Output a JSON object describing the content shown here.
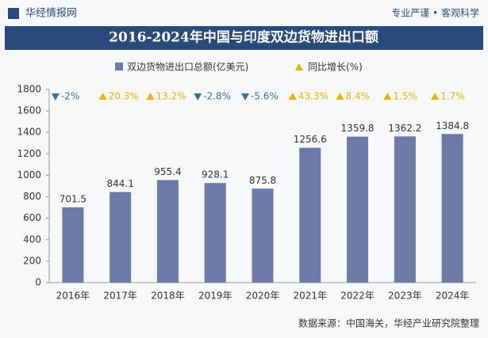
{
  "header": {
    "brand": "华经情报网",
    "slogan": "专业严谨 • 客观科学"
  },
  "chart_data": {
    "type": "bar",
    "title": "2016-2024年中国与印度双边货物进出口额",
    "categories": [
      "2016年",
      "2017年",
      "2018年",
      "2019年",
      "2020年",
      "2021年",
      "2022年",
      "2023年",
      "2024年"
    ],
    "series": [
      {
        "name": "双边货物进出口总额(亿美元)",
        "color": "#6b7aa6",
        "values": [
          701.5,
          844.1,
          955.4,
          928.1,
          875.8,
          1256.6,
          1359.8,
          1362.2,
          1384.8
        ]
      },
      {
        "name": "同比增长(%)",
        "color": "#e8b400",
        "color_down": "#3d7096",
        "values": [
          -2,
          20.3,
          13.2,
          -2.8,
          -5.6,
          43.3,
          8.4,
          1.5,
          1.7
        ],
        "value_labels": [
          "-2%",
          "20.3%",
          "13.2%",
          "-2.8%",
          "-5.6%",
          "43.3%",
          "8.4%",
          "1.5%",
          "1.7%"
        ]
      }
    ],
    "ylim": [
      0,
      1800
    ],
    "yticks": [
      0,
      200,
      400,
      600,
      800,
      1000,
      1200,
      1400,
      1600,
      1800
    ]
  },
  "source": "数据来源：中国海关，华经产业研究院整理"
}
